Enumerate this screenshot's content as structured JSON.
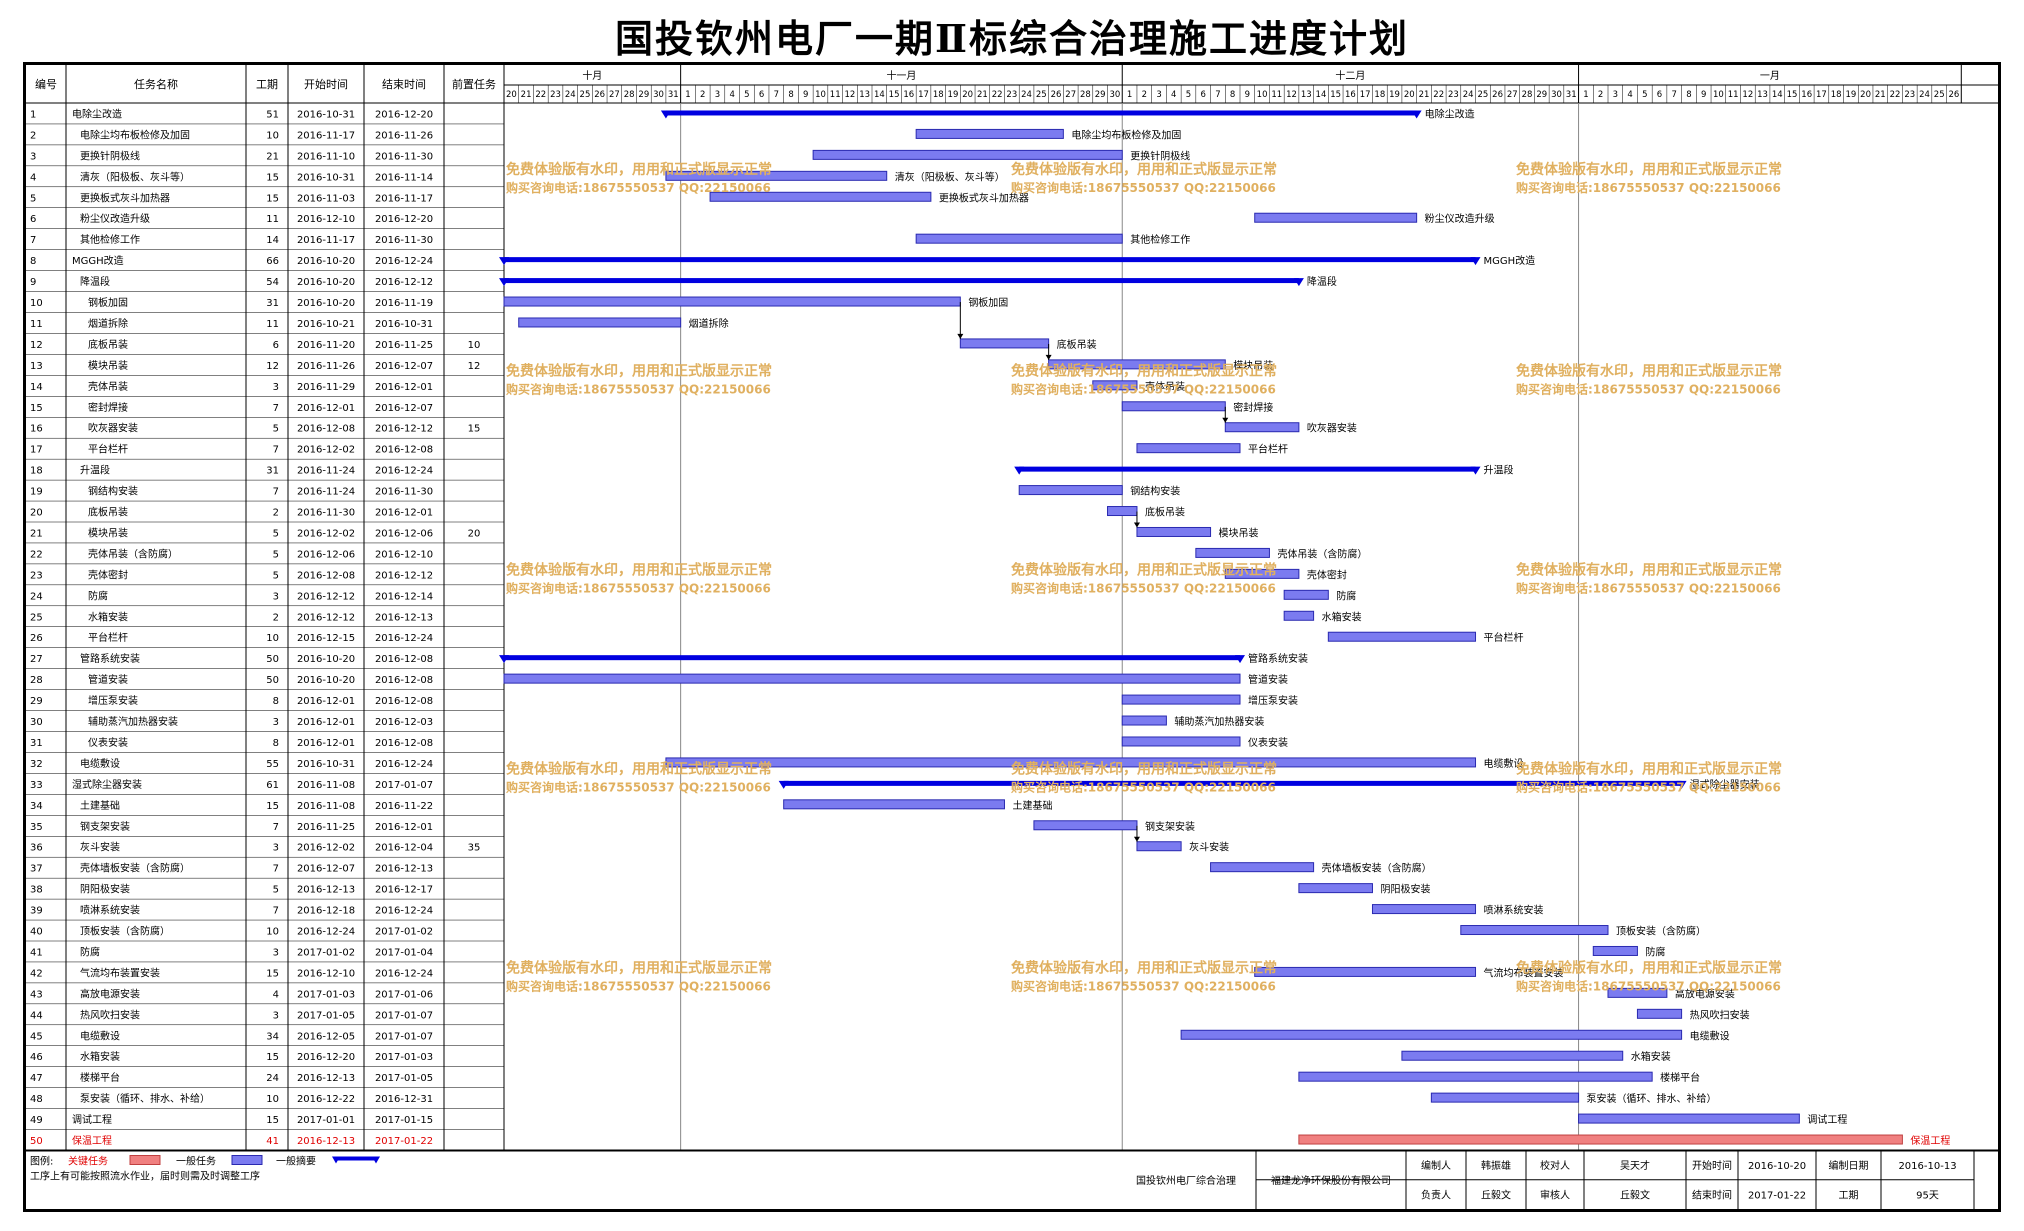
{
  "page_title": "国投钦州电厂一期Ⅱ标综合治理施工进度计划",
  "colors": {
    "task_bar": "#7b7bf0",
    "task_bar_stroke": "#2a2ab0",
    "summary_bar": "#0000e0",
    "critical_bar": "#f08080",
    "critical_text": "#e00000",
    "watermark": "#e0b060",
    "grid": "#888888"
  },
  "chart_data": {
    "type": "gantt",
    "start_date": "2016-10-20",
    "end_date": "2017-01-26",
    "columns": [
      "编号",
      "任务名称",
      "工期",
      "开始时间",
      "结束时间",
      "前置任务"
    ],
    "months": [
      {
        "label": "十月",
        "start": "2016-10-20",
        "end": "2016-10-31"
      },
      {
        "label": "十一月",
        "start": "2016-11-01",
        "end": "2016-11-30"
      },
      {
        "label": "十二月",
        "start": "2016-12-01",
        "end": "2016-12-31"
      },
      {
        "label": "一月",
        "start": "2017-01-01",
        "end": "2017-01-26"
      }
    ],
    "tasks": [
      {
        "id": "1",
        "name": "电除尘改造",
        "duration": 51,
        "start": "2016-10-31",
        "end": "2016-12-20",
        "pred": "",
        "level": 0,
        "type": "summary"
      },
      {
        "id": "2",
        "name": "电除尘均布板检修及加固",
        "duration": 10,
        "start": "2016-11-17",
        "end": "2016-11-26",
        "pred": "",
        "level": 1,
        "type": "task"
      },
      {
        "id": "3",
        "name": "更换针阴极线",
        "duration": 21,
        "start": "2016-11-10",
        "end": "2016-11-30",
        "pred": "",
        "level": 1,
        "type": "task"
      },
      {
        "id": "4",
        "name": "清灰（阳极板、灰斗等）",
        "duration": 15,
        "start": "2016-10-31",
        "end": "2016-11-14",
        "pred": "",
        "level": 1,
        "type": "task"
      },
      {
        "id": "5",
        "name": "更换板式灰斗加热器",
        "duration": 15,
        "start": "2016-11-03",
        "end": "2016-11-17",
        "pred": "",
        "level": 1,
        "type": "task"
      },
      {
        "id": "6",
        "name": "粉尘仪改造升级",
        "duration": 11,
        "start": "2016-12-10",
        "end": "2016-12-20",
        "pred": "",
        "level": 1,
        "type": "task"
      },
      {
        "id": "7",
        "name": "其他检修工作",
        "duration": 14,
        "start": "2016-11-17",
        "end": "2016-11-30",
        "pred": "",
        "level": 1,
        "type": "task"
      },
      {
        "id": "8",
        "name": "MGGH改造",
        "duration": 66,
        "start": "2016-10-20",
        "end": "2016-12-24",
        "pred": "",
        "level": 0,
        "type": "summary"
      },
      {
        "id": "9",
        "name": "降温段",
        "duration": 54,
        "start": "2016-10-20",
        "end": "2016-12-12",
        "pred": "",
        "level": 1,
        "type": "summary"
      },
      {
        "id": "10",
        "name": "钢板加固",
        "duration": 31,
        "start": "2016-10-20",
        "end": "2016-11-19",
        "pred": "",
        "level": 2,
        "type": "task"
      },
      {
        "id": "11",
        "name": "烟道拆除",
        "duration": 11,
        "start": "2016-10-21",
        "end": "2016-10-31",
        "pred": "",
        "level": 2,
        "type": "task"
      },
      {
        "id": "12",
        "name": "底板吊装",
        "duration": 6,
        "start": "2016-11-20",
        "end": "2016-11-25",
        "pred": "10",
        "level": 2,
        "type": "task"
      },
      {
        "id": "13",
        "name": "模块吊装",
        "duration": 12,
        "start": "2016-11-26",
        "end": "2016-12-07",
        "pred": "12",
        "level": 2,
        "type": "task"
      },
      {
        "id": "14",
        "name": "壳体吊装",
        "duration": 3,
        "start": "2016-11-29",
        "end": "2016-12-01",
        "pred": "",
        "level": 2,
        "type": "task"
      },
      {
        "id": "15",
        "name": "密封焊接",
        "duration": 7,
        "start": "2016-12-01",
        "end": "2016-12-07",
        "pred": "",
        "level": 2,
        "type": "task"
      },
      {
        "id": "16",
        "name": "吹灰器安装",
        "duration": 5,
        "start": "2016-12-08",
        "end": "2016-12-12",
        "pred": "15",
        "level": 2,
        "type": "task"
      },
      {
        "id": "17",
        "name": "平台栏杆",
        "duration": 7,
        "start": "2016-12-02",
        "end": "2016-12-08",
        "pred": "",
        "level": 2,
        "type": "task"
      },
      {
        "id": "18",
        "name": "升温段",
        "duration": 31,
        "start": "2016-11-24",
        "end": "2016-12-24",
        "pred": "",
        "level": 1,
        "type": "summary"
      },
      {
        "id": "19",
        "name": "钢结构安装",
        "duration": 7,
        "start": "2016-11-24",
        "end": "2016-11-30",
        "pred": "",
        "level": 2,
        "type": "task"
      },
      {
        "id": "20",
        "name": "底板吊装",
        "duration": 2,
        "start": "2016-11-30",
        "end": "2016-12-01",
        "pred": "",
        "level": 2,
        "type": "task"
      },
      {
        "id": "21",
        "name": "模块吊装",
        "duration": 5,
        "start": "2016-12-02",
        "end": "2016-12-06",
        "pred": "20",
        "level": 2,
        "type": "task"
      },
      {
        "id": "22",
        "name": "壳体吊装（含防腐）",
        "duration": 5,
        "start": "2016-12-06",
        "end": "2016-12-10",
        "pred": "",
        "level": 2,
        "type": "task"
      },
      {
        "id": "23",
        "name": "壳体密封",
        "duration": 5,
        "start": "2016-12-08",
        "end": "2016-12-12",
        "pred": "",
        "level": 2,
        "type": "task"
      },
      {
        "id": "24",
        "name": "防腐",
        "duration": 3,
        "start": "2016-12-12",
        "end": "2016-12-14",
        "pred": "",
        "level": 2,
        "type": "task"
      },
      {
        "id": "25",
        "name": "水箱安装",
        "duration": 2,
        "start": "2016-12-12",
        "end": "2016-12-13",
        "pred": "",
        "level": 2,
        "type": "task"
      },
      {
        "id": "26",
        "name": "平台栏杆",
        "duration": 10,
        "start": "2016-12-15",
        "end": "2016-12-24",
        "pred": "",
        "level": 2,
        "type": "task"
      },
      {
        "id": "27",
        "name": "管路系统安装",
        "duration": 50,
        "start": "2016-10-20",
        "end": "2016-12-08",
        "pred": "",
        "level": 1,
        "type": "summary"
      },
      {
        "id": "28",
        "name": "管道安装",
        "duration": 50,
        "start": "2016-10-20",
        "end": "2016-12-08",
        "pred": "",
        "level": 2,
        "type": "task"
      },
      {
        "id": "29",
        "name": "增压泵安装",
        "duration": 8,
        "start": "2016-12-01",
        "end": "2016-12-08",
        "pred": "",
        "level": 2,
        "type": "task"
      },
      {
        "id": "30",
        "name": "辅助蒸汽加热器安装",
        "duration": 3,
        "start": "2016-12-01",
        "end": "2016-12-03",
        "pred": "",
        "level": 2,
        "type": "task"
      },
      {
        "id": "31",
        "name": "仪表安装",
        "duration": 8,
        "start": "2016-12-01",
        "end": "2016-12-08",
        "pred": "",
        "level": 2,
        "type": "task"
      },
      {
        "id": "32",
        "name": "电缆敷设",
        "duration": 55,
        "start": "2016-10-31",
        "end": "2016-12-24",
        "pred": "",
        "level": 1,
        "type": "task"
      },
      {
        "id": "33",
        "name": "湿式除尘器安装",
        "duration": 61,
        "start": "2016-11-08",
        "end": "2017-01-07",
        "pred": "",
        "level": 0,
        "type": "summary"
      },
      {
        "id": "34",
        "name": "土建基础",
        "duration": 15,
        "start": "2016-11-08",
        "end": "2016-11-22",
        "pred": "",
        "level": 1,
        "type": "task"
      },
      {
        "id": "35",
        "name": "钢支架安装",
        "duration": 7,
        "start": "2016-11-25",
        "end": "2016-12-01",
        "pred": "",
        "level": 1,
        "type": "task"
      },
      {
        "id": "36",
        "name": "灰斗安装",
        "duration": 3,
        "start": "2016-12-02",
        "end": "2016-12-04",
        "pred": "35",
        "level": 1,
        "type": "task"
      },
      {
        "id": "37",
        "name": "壳体墙板安装（含防腐）",
        "duration": 7,
        "start": "2016-12-07",
        "end": "2016-12-13",
        "pred": "",
        "level": 1,
        "type": "task"
      },
      {
        "id": "38",
        "name": "阴阳极安装",
        "duration": 5,
        "start": "2016-12-13",
        "end": "2016-12-17",
        "pred": "",
        "level": 1,
        "type": "task"
      },
      {
        "id": "39",
        "name": "喷淋系统安装",
        "duration": 7,
        "start": "2016-12-18",
        "end": "2016-12-24",
        "pred": "",
        "level": 1,
        "type": "task"
      },
      {
        "id": "40",
        "name": "顶板安装（含防腐）",
        "duration": 10,
        "start": "2016-12-24",
        "end": "2017-01-02",
        "pred": "",
        "level": 1,
        "type": "task"
      },
      {
        "id": "41",
        "name": "防腐",
        "duration": 3,
        "start": "2017-01-02",
        "end": "2017-01-04",
        "pred": "",
        "level": 1,
        "type": "task"
      },
      {
        "id": "42",
        "name": "气流均布装置安装",
        "duration": 15,
        "start": "2016-12-10",
        "end": "2016-12-24",
        "pred": "",
        "level": 1,
        "type": "task"
      },
      {
        "id": "43",
        "name": "高放电源安装",
        "duration": 4,
        "start": "2017-01-03",
        "end": "2017-01-06",
        "pred": "",
        "level": 1,
        "type": "task"
      },
      {
        "id": "44",
        "name": "热风吹扫安装",
        "duration": 3,
        "start": "2017-01-05",
        "end": "2017-01-07",
        "pred": "",
        "level": 1,
        "type": "task"
      },
      {
        "id": "45",
        "name": "电缆敷设",
        "duration": 34,
        "start": "2016-12-05",
        "end": "2017-01-07",
        "pred": "",
        "level": 1,
        "type": "task"
      },
      {
        "id": "46",
        "name": "水箱安装",
        "duration": 15,
        "start": "2016-12-20",
        "end": "2017-01-03",
        "pred": "",
        "level": 1,
        "type": "task"
      },
      {
        "id": "47",
        "name": "楼梯平台",
        "duration": 24,
        "start": "2016-12-13",
        "end": "2017-01-05",
        "pred": "",
        "level": 1,
        "type": "task"
      },
      {
        "id": "48",
        "name": "泵安装（循环、排水、补给）",
        "duration": 10,
        "start": "2016-12-22",
        "end": "2016-12-31",
        "pred": "",
        "level": 1,
        "type": "task"
      },
      {
        "id": "49",
        "name": "调试工程",
        "duration": 15,
        "start": "2017-01-01",
        "end": "2017-01-15",
        "pred": "",
        "level": 0,
        "type": "task"
      },
      {
        "id": "50",
        "name": "保温工程",
        "duration": 41,
        "start": "2016-12-13",
        "end": "2017-01-22",
        "pred": "",
        "level": 0,
        "type": "critical"
      }
    ],
    "legend": {
      "title": "图例:",
      "critical": "关键任务",
      "normal": "一般任务",
      "summary": "一般摘要",
      "note": "工序上有可能按照流水作业，届时则需及时调整工序"
    }
  },
  "watermark": {
    "line1": "免费体验版有水印，用用和正式版显示正常",
    "line2": "购买咨询电话:18675550537 QQ:22150066"
  },
  "footer": {
    "project": "国投钦州电厂综合治理",
    "company": "福建龙净环保股份有限公司",
    "cells": [
      [
        "编制人",
        "韩振雄",
        "校对人",
        "吴天才",
        "开始时间",
        "2016-10-20",
        "编制日期",
        "2016-10-13"
      ],
      [
        "负责人",
        "丘毅文",
        "审核人",
        "丘毅文",
        "结束时间",
        "2017-01-22",
        "工期",
        "95天"
      ]
    ]
  }
}
